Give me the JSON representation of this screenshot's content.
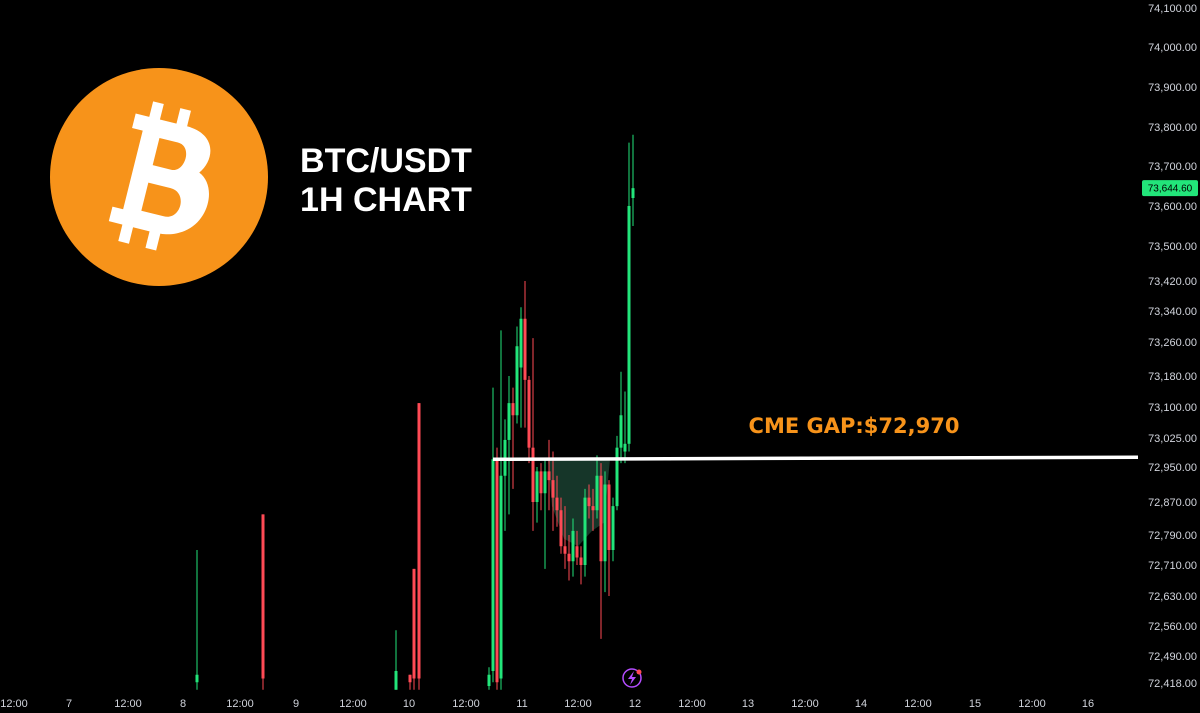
{
  "header": {
    "title_line1": "BTC/USDT",
    "title_line2": "1H CHART",
    "logo_glyph": "B",
    "logo_color": "#f7931a"
  },
  "annotation": {
    "label": "CME GAP:$72,970",
    "color": "#f7931a",
    "price": 72970
  },
  "price_tag": {
    "label": "73,644.60",
    "value": 73644.6,
    "color": "#22e57a"
  },
  "colors": {
    "up": "#22e57a",
    "down": "#ff4a55",
    "gap_fill": "#1f4d3b"
  },
  "chart_data": {
    "type": "candlestick",
    "y_ticks": [
      {
        "value": 74100,
        "label": "74,100.00"
      },
      {
        "value": 74000,
        "label": "74,000.00"
      },
      {
        "value": 73900,
        "label": "73,900.00"
      },
      {
        "value": 73800,
        "label": "73,800.00"
      },
      {
        "value": 73700,
        "label": "73,700.00"
      },
      {
        "value": 73600,
        "label": "73,600.00"
      },
      {
        "value": 73500,
        "label": "73,500.00"
      },
      {
        "value": 73420,
        "label": "73,420.00"
      },
      {
        "value": 73340,
        "label": "73,340.00"
      },
      {
        "value": 73260,
        "label": "73,260.00"
      },
      {
        "value": 73180,
        "label": "73,180.00"
      },
      {
        "value": 73100,
        "label": "73,100.00"
      },
      {
        "value": 73025,
        "label": "73,025.00"
      },
      {
        "value": 72950,
        "label": "72,950.00"
      },
      {
        "value": 72870,
        "label": "72,870.00"
      },
      {
        "value": 72790,
        "label": "72,790.00"
      },
      {
        "value": 72710,
        "label": "72,710.00"
      },
      {
        "value": 72630,
        "label": "72,630.00"
      },
      {
        "value": 72560,
        "label": "72,560.00"
      },
      {
        "value": 72490,
        "label": "72,490.00"
      },
      {
        "value": 72418,
        "label": "72,418.00"
      }
    ],
    "x_ticks": [
      "12:00",
      "7",
      "12:00",
      "8",
      "12:00",
      "9",
      "12:00",
      "10",
      "12:00",
      "11",
      "12:00",
      "12",
      "12:00",
      "13",
      "12:00",
      "14",
      "12:00",
      "15",
      "12:00",
      "16"
    ],
    "candles": [
      {
        "t": 197,
        "o": 72420,
        "h": 72750,
        "l": 72400,
        "c": 72440
      },
      {
        "t": 263,
        "o": 72840,
        "h": 72840,
        "l": 72400,
        "c": 72430
      },
      {
        "t": 396,
        "o": 72400,
        "h": 72550,
        "l": 72400,
        "c": 72450
      },
      {
        "t": 410,
        "o": 72440,
        "h": 72440,
        "l": 72400,
        "c": 72420
      },
      {
        "t": 414,
        "o": 72700,
        "h": 72700,
        "l": 72400,
        "c": 72430
      },
      {
        "t": 419,
        "o": 73110,
        "h": 73110,
        "l": 72400,
        "c": 72430
      },
      {
        "t": 489,
        "o": 72410,
        "h": 72460,
        "l": 72400,
        "c": 72440
      },
      {
        "t": 493,
        "o": 72450,
        "h": 73150,
        "l": 72420,
        "c": 72970
      },
      {
        "t": 497,
        "o": 72970,
        "h": 73000,
        "l": 72400,
        "c": 72420
      },
      {
        "t": 501,
        "o": 72430,
        "h": 73290,
        "l": 72400,
        "c": 72930
      },
      {
        "t": 505,
        "o": 72930,
        "h": 73070,
        "l": 72800,
        "c": 73020
      },
      {
        "t": 509,
        "o": 73020,
        "h": 73180,
        "l": 72840,
        "c": 73110
      },
      {
        "t": 513,
        "o": 73110,
        "h": 73150,
        "l": 72900,
        "c": 73080
      },
      {
        "t": 517,
        "o": 73080,
        "h": 73300,
        "l": 73060,
        "c": 73250
      },
      {
        "t": 521,
        "o": 73200,
        "h": 73350,
        "l": 73050,
        "c": 73320
      },
      {
        "t": 525,
        "o": 73320,
        "h": 73420,
        "l": 73050,
        "c": 73170
      },
      {
        "t": 529,
        "o": 73170,
        "h": 73180,
        "l": 72960,
        "c": 73000
      },
      {
        "t": 533,
        "o": 73000,
        "h": 73270,
        "l": 72800,
        "c": 72870
      },
      {
        "t": 537,
        "o": 72870,
        "h": 72950,
        "l": 72820,
        "c": 72940
      },
      {
        "t": 541,
        "o": 72940,
        "h": 72960,
        "l": 72850,
        "c": 72890
      },
      {
        "t": 545,
        "o": 72890,
        "h": 72970,
        "l": 72700,
        "c": 72940
      },
      {
        "t": 549,
        "o": 72940,
        "h": 73020,
        "l": 72850,
        "c": 72920
      },
      {
        "t": 553,
        "o": 72920,
        "h": 72990,
        "l": 72800,
        "c": 72880
      },
      {
        "t": 557,
        "o": 72880,
        "h": 72930,
        "l": 72810,
        "c": 72850
      },
      {
        "t": 561,
        "o": 72850,
        "h": 72880,
        "l": 72740,
        "c": 72760
      },
      {
        "t": 565,
        "o": 72760,
        "h": 72860,
        "l": 72700,
        "c": 72740
      },
      {
        "t": 569,
        "o": 72740,
        "h": 72790,
        "l": 72670,
        "c": 72720
      },
      {
        "t": 573,
        "o": 72720,
        "h": 72830,
        "l": 72680,
        "c": 72800
      },
      {
        "t": 577,
        "o": 72760,
        "h": 72800,
        "l": 72710,
        "c": 72730
      },
      {
        "t": 581,
        "o": 72730,
        "h": 72760,
        "l": 72660,
        "c": 72710
      },
      {
        "t": 585,
        "o": 72710,
        "h": 72900,
        "l": 72680,
        "c": 72880
      },
      {
        "t": 589,
        "o": 72880,
        "h": 72910,
        "l": 72830,
        "c": 72860
      },
      {
        "t": 593,
        "o": 72860,
        "h": 72900,
        "l": 72800,
        "c": 72850
      },
      {
        "t": 597,
        "o": 72850,
        "h": 72980,
        "l": 72830,
        "c": 72930
      },
      {
        "t": 601,
        "o": 72930,
        "h": 72960,
        "l": 72530,
        "c": 72720
      },
      {
        "t": 605,
        "o": 72720,
        "h": 72940,
        "l": 72640,
        "c": 72910
      },
      {
        "t": 609,
        "o": 72910,
        "h": 72920,
        "l": 72630,
        "c": 72750
      },
      {
        "t": 613,
        "o": 72750,
        "h": 72880,
        "l": 72720,
        "c": 72860
      },
      {
        "t": 617,
        "o": 72860,
        "h": 73030,
        "l": 72850,
        "c": 73000
      },
      {
        "t": 621,
        "o": 73000,
        "h": 73190,
        "l": 72960,
        "c": 73080
      },
      {
        "t": 625,
        "o": 72990,
        "h": 73140,
        "l": 72960,
        "c": 73010
      },
      {
        "t": 629,
        "o": 73010,
        "h": 73760,
        "l": 72990,
        "c": 73600
      },
      {
        "t": 633,
        "o": 73620,
        "h": 73780,
        "l": 73550,
        "c": 73644.6
      }
    ]
  }
}
